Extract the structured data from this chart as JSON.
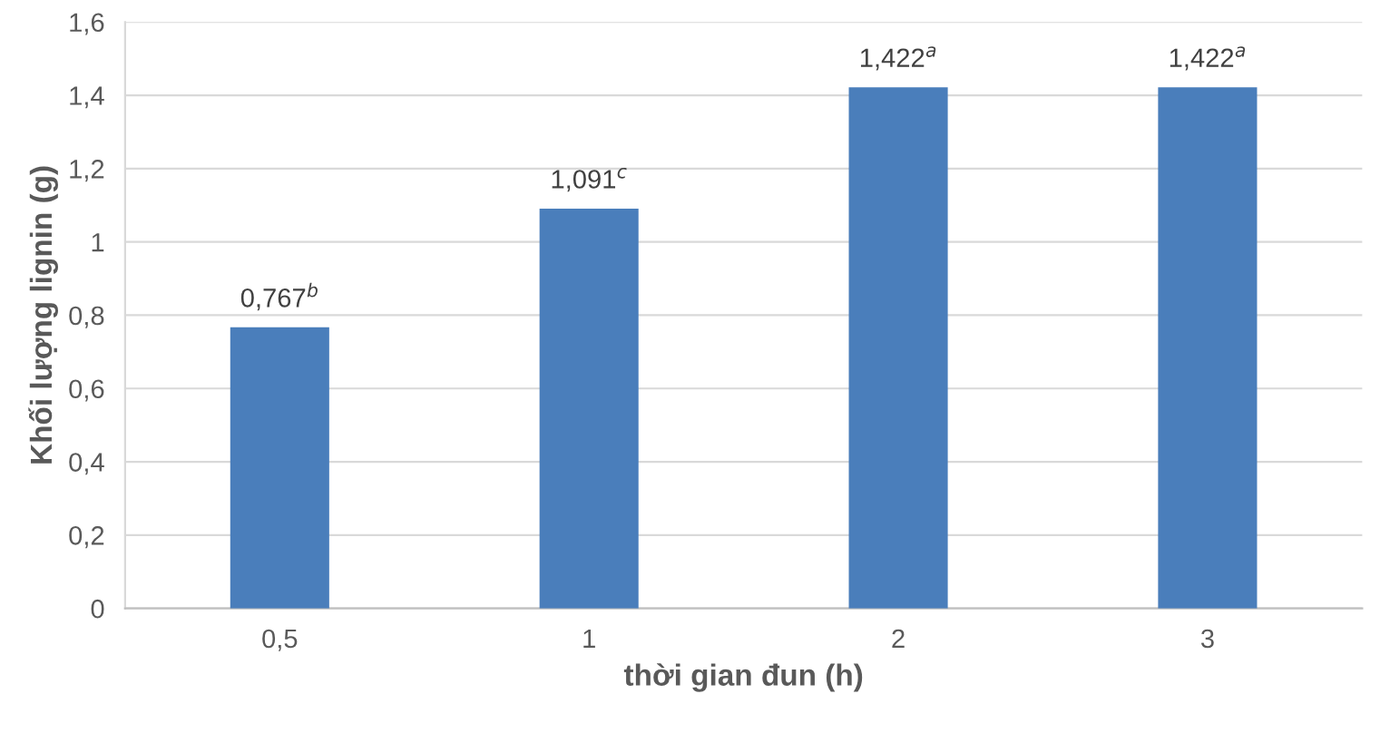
{
  "chart_data": {
    "type": "bar",
    "categories": [
      "0,5",
      "1",
      "2",
      "3"
    ],
    "values": [
      0.767,
      1.091,
      1.422,
      1.422
    ],
    "color": "#4a7ebb",
    "value_labels": [
      "0,767$^{b}$",
      "1,091$^{c}$",
      "1,422$^{a}$",
      "1,422$^{a}$"
    ],
    "xlabel": "thời gian đun (h)",
    "ylabel": "Khối lượng lignin (g)",
    "ylim": [
      0,
      1.6
    ],
    "yticks": [
      0,
      {
        "value": 0.2,
        "label": "0,2"
      },
      {
        "value": 0.4,
        "label": "0,4"
      },
      {
        "value": 0.6,
        "label": "0,6"
      },
      {
        "value": 0.8,
        "label": "0,8"
      },
      1,
      {
        "value": 1.2,
        "label": "1,2"
      },
      {
        "value": 1.4,
        "label": "1,4"
      },
      {
        "value": 1.6,
        "label": "1,6"
      }
    ],
    "grid": "y"
  }
}
